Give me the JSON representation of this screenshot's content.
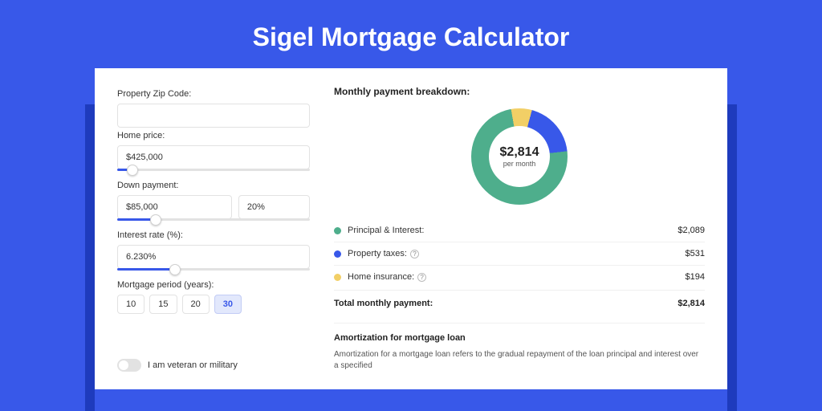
{
  "page": {
    "title": "Sigel Mortgage Calculator",
    "bg_color": "#3858e9",
    "shadow_color": "#1e3bbd"
  },
  "form": {
    "zip": {
      "label": "Property Zip Code:",
      "value": ""
    },
    "home_price": {
      "label": "Home price:",
      "value": "$425,000",
      "slider_pct": 8
    },
    "down_payment": {
      "label": "Down payment:",
      "value": "$85,000",
      "percent": "20%",
      "slider_pct": 20
    },
    "interest": {
      "label": "Interest rate (%):",
      "value": "6.230%",
      "slider_pct": 30
    },
    "period": {
      "label": "Mortgage period (years):",
      "options": [
        "10",
        "15",
        "20",
        "30"
      ],
      "selected": "30"
    },
    "veteran": {
      "label": "I am veteran or military",
      "checked": false
    }
  },
  "slider_fill_color": "#3858e9",
  "slider_track_color": "#e2e2e2",
  "breakdown": {
    "title": "Monthly payment breakdown:",
    "total": "$2,814",
    "sub": "per month",
    "items": [
      {
        "label": "Principal & Interest:",
        "amount": "$2,089",
        "color": "#4eae8c",
        "pct": 74,
        "info": false
      },
      {
        "label": "Property taxes:",
        "amount": "$531",
        "color": "#3858e9",
        "pct": 19,
        "info": true
      },
      {
        "label": "Home insurance:",
        "amount": "$194",
        "color": "#f2cf66",
        "pct": 7,
        "info": true
      }
    ],
    "total_label": "Total monthly payment:",
    "total_amount": "$2,814"
  },
  "amortization": {
    "title": "Amortization for mortgage loan",
    "text": "Amortization for a mortgage loan refers to the gradual repayment of the loan principal and interest over a specified"
  }
}
